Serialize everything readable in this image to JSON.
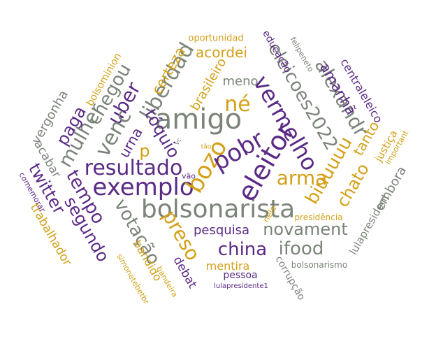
{
  "palette": {
    "gray": "#7a8478",
    "gold": "#d4a017",
    "purple": "#5b2a86"
  },
  "words": [
    {
      "text": "bolsonarista"
    },
    {
      "text": "exemplo"
    },
    {
      "text": "amigo"
    },
    {
      "text": "eleitor"
    },
    {
      "text": "resultado"
    },
    {
      "text": "bozo"
    },
    {
      "text": "pobr"
    },
    {
      "text": "vermelho"
    },
    {
      "text": "né"
    },
    {
      "text": "eleicoes2022"
    },
    {
      "text": "alexandr"
    },
    {
      "text": "arma"
    },
    {
      "text": "biuuuuu"
    },
    {
      "text": "chato"
    },
    {
      "text": "tanto"
    },
    {
      "text": "novament"
    },
    {
      "text": "china"
    },
    {
      "text": "ifood"
    },
    {
      "text": "pesquisa"
    },
    {
      "text": "preso"
    },
    {
      "text": "votação"
    },
    {
      "text": "tempo"
    },
    {
      "text": "segundo"
    },
    {
      "text": "twitter"
    },
    {
      "text": "mulher"
    },
    {
      "text": "uber"
    },
    {
      "text": "paga"
    },
    {
      "text": "chegou"
    },
    {
      "text": "venc"
    },
    {
      "text": "liberdad"
    },
    {
      "text": "tóquio"
    },
    {
      "text": "urna"
    },
    {
      "text": "p"
    },
    {
      "text": "certeza"
    },
    {
      "text": "brasileiro"
    },
    {
      "text": "acordei"
    },
    {
      "text": "meno"
    },
    {
      "text": "oportunidad"
    },
    {
      "text": "educação"
    },
    {
      "text": "felipeneto"
    },
    {
      "text": "centraleleico"
    },
    {
      "text": "amanhã"
    },
    {
      "text": "justiça"
    },
    {
      "text": "important"
    },
    {
      "text": "embora"
    },
    {
      "text": "lulapresident"
    },
    {
      "text": "presidência"
    },
    {
      "text": "corrupção"
    },
    {
      "text": "bolsonarismo"
    },
    {
      "text": "pessoa"
    },
    {
      "text": "lulapresidente1"
    },
    {
      "text": "mentira"
    },
    {
      "text": "debat"
    },
    {
      "text": "bandeira"
    },
    {
      "text": "bandido"
    },
    {
      "text": "simonetebetbr"
    },
    {
      "text": "trabalhador"
    },
    {
      "text": "comemorar"
    },
    {
      "text": "acabar"
    },
    {
      "text": "vergonha"
    },
    {
      "text": "bolsominion"
    },
    {
      "text": "nele"
    },
    {
      "text": "vão"
    },
    {
      "text": "tão"
    },
    {
      "text": "vc"
    }
  ]
}
